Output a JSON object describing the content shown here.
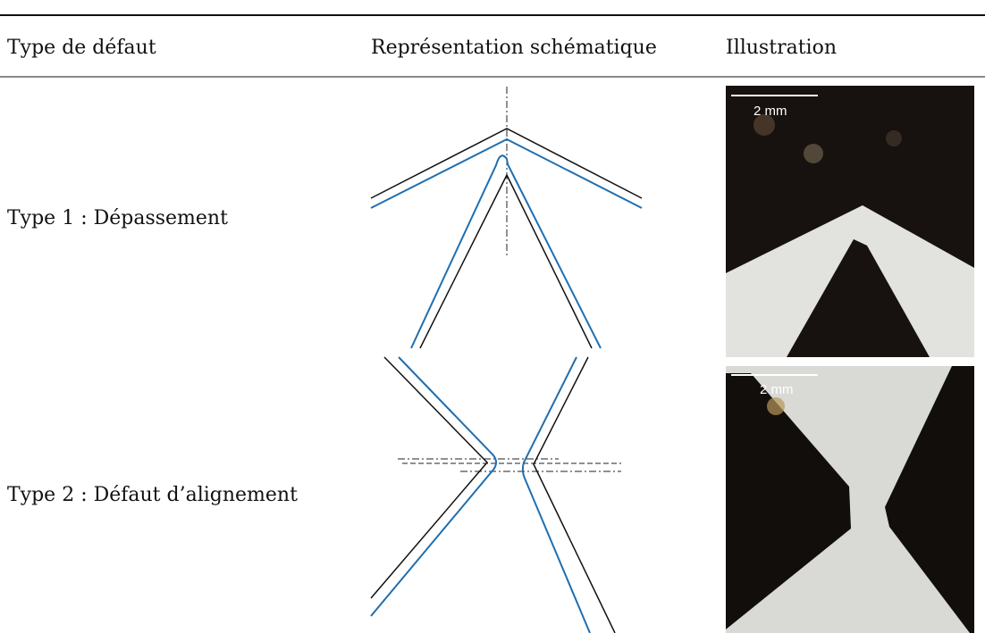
{
  "table": {
    "headers": [
      "Type de défaut",
      "Représentation schématique",
      "Illustration"
    ],
    "rows": [
      {
        "label": "Type 1 : Dépassement",
        "scale": "2 mm"
      },
      {
        "label": "Type 2 : Défaut d’alignement",
        "scale": "2 mm"
      }
    ]
  }
}
